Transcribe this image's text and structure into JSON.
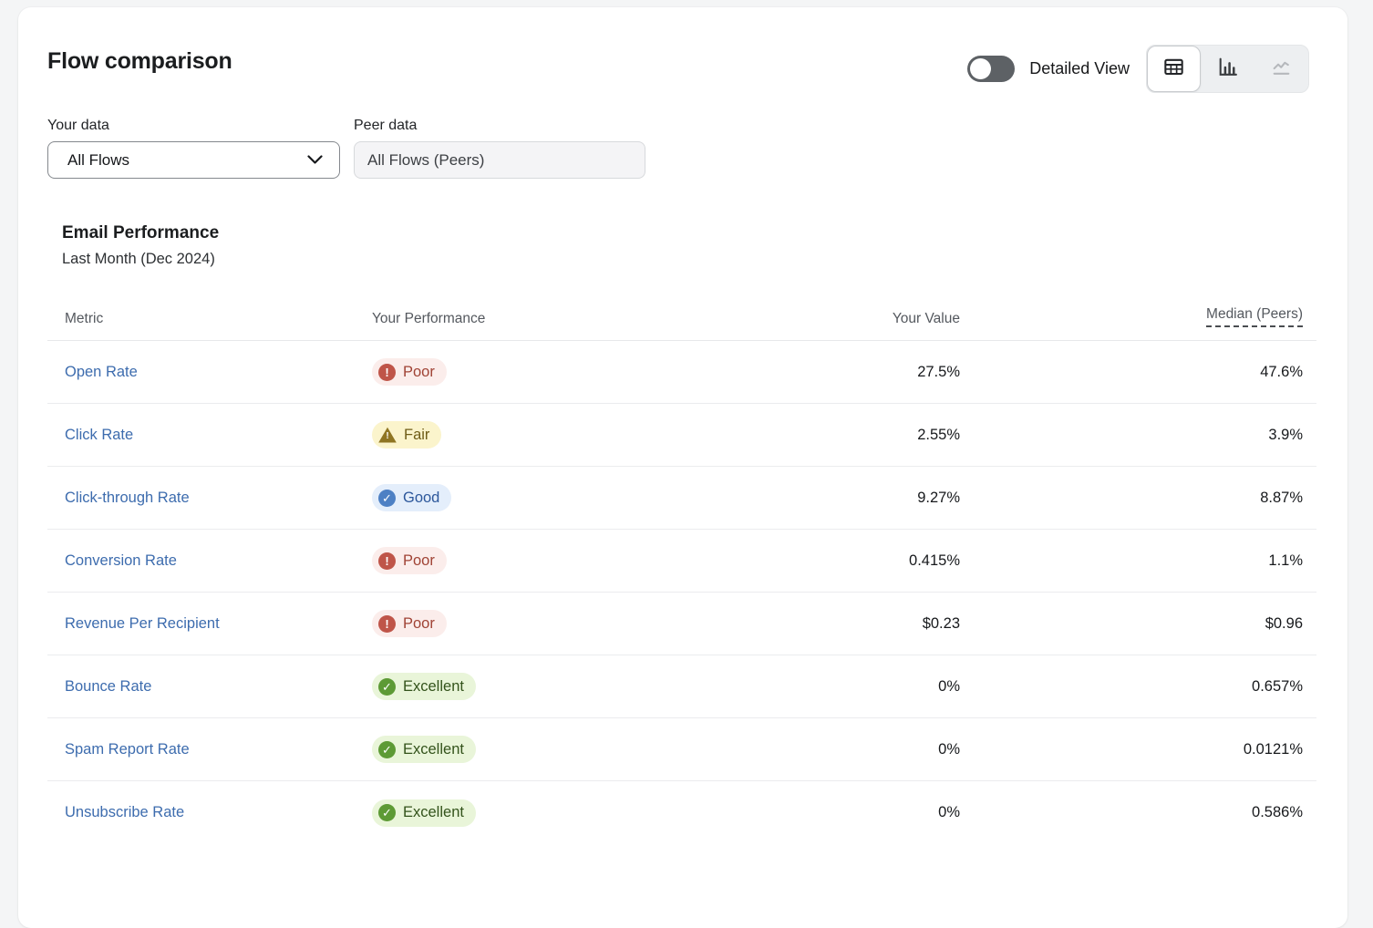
{
  "title": "Flow comparison",
  "controls": {
    "detailed_view_label": "Detailed View",
    "toggle_state": "off",
    "view_buttons": [
      {
        "id": "table-view",
        "selected": true,
        "disabled": false
      },
      {
        "id": "bar-chart-view",
        "selected": false,
        "disabled": false
      },
      {
        "id": "line-chart-view",
        "selected": false,
        "disabled": true
      }
    ]
  },
  "filters": {
    "your_data_label": "Your data",
    "your_data_value": "All Flows",
    "peer_data_label": "Peer data",
    "peer_data_value": "All Flows (Peers)"
  },
  "section": {
    "heading": "Email Performance",
    "subheading": "Last Month (Dec 2024)"
  },
  "table": {
    "columns": {
      "metric": "Metric",
      "performance": "Your Performance",
      "your_value": "Your Value",
      "median": "Median (Peers)"
    },
    "rows": [
      {
        "metric": "Open Rate",
        "rating": "Poor",
        "your_value": "27.5%",
        "median": "47.6%"
      },
      {
        "metric": "Click Rate",
        "rating": "Fair",
        "your_value": "2.55%",
        "median": "3.9%"
      },
      {
        "metric": "Click-through Rate",
        "rating": "Good",
        "your_value": "9.27%",
        "median": "8.87%"
      },
      {
        "metric": "Conversion Rate",
        "rating": "Poor",
        "your_value": "0.415%",
        "median": "1.1%"
      },
      {
        "metric": "Revenue Per Recipient",
        "rating": "Poor",
        "your_value": "$0.23",
        "median": "$0.96"
      },
      {
        "metric": "Bounce Rate",
        "rating": "Excellent",
        "your_value": "0%",
        "median": "0.657%"
      },
      {
        "metric": "Spam Report Rate",
        "rating": "Excellent",
        "your_value": "0%",
        "median": "0.0121%"
      },
      {
        "metric": "Unsubscribe Rate",
        "rating": "Excellent",
        "your_value": "0%",
        "median": "0.586%"
      }
    ]
  },
  "ratings": {
    "Poor": {
      "bg": "#fbedeb",
      "icon_color": "#bf5549",
      "text_color": "#a04335",
      "icon": "exclamation-circle-icon"
    },
    "Fair": {
      "bg": "#fbf4cc",
      "icon_color": "#8f7522",
      "text_color": "#6f5d17",
      "icon": "warning-triangle-icon"
    },
    "Good": {
      "bg": "#e4eefb",
      "icon_color": "#4d80c4",
      "text_color": "#2c579b",
      "icon": "check-circle-icon"
    },
    "Excellent": {
      "bg": "#e9f5d9",
      "icon_color": "#5d9a35",
      "text_color": "#33531b",
      "icon": "check-circle-icon"
    }
  },
  "colors": {
    "link_blue": "#3d6cae",
    "toggle_off": "#5d6165",
    "card_bg": "#ffffff",
    "page_bg": "#f4f5f6"
  }
}
